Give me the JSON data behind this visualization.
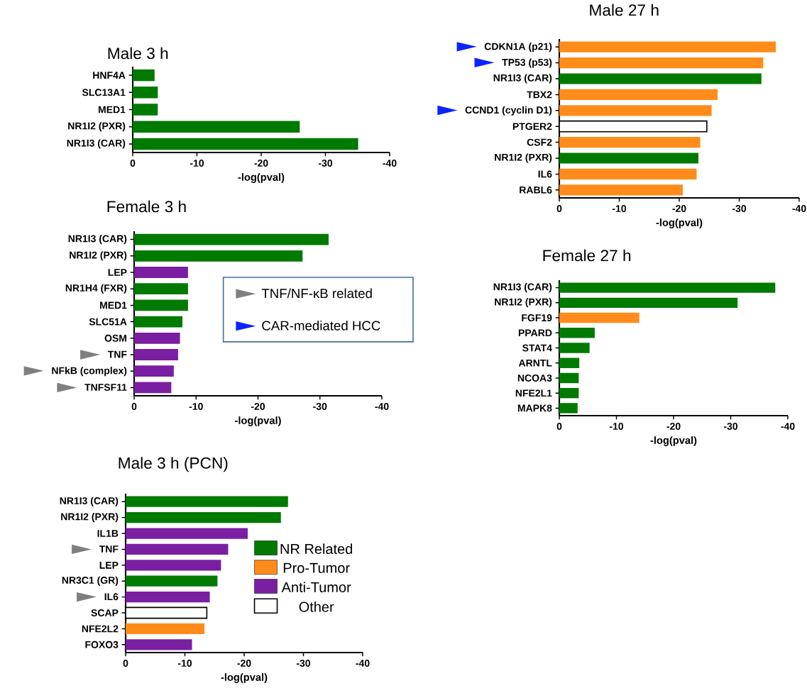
{
  "chart_data": [
    {
      "type": "bar",
      "orientation": "horizontal",
      "title": "Male 3 h",
      "xlabel": "-log(pval)",
      "xlim": [
        0,
        -40
      ],
      "xticks": [
        0,
        -10,
        -20,
        -30,
        -40
      ],
      "categories": [
        "HNF4A",
        "SLC13A1",
        "MED1",
        "NR1I2 (PXR)",
        "NR1I3 (CAR)"
      ],
      "series": [
        {
          "color": "#007a00",
          "values": [
            -3.4,
            -3.9,
            -3.9,
            -26,
            -35.1
          ]
        }
      ]
    },
    {
      "type": "bar",
      "orientation": "horizontal",
      "title": "Male 27 h",
      "xlabel": "-log(pval)",
      "xlim": [
        0,
        -40
      ],
      "xticks": [
        0,
        -10,
        -20,
        -30,
        -40
      ],
      "categories": [
        "CDKN1A (p21)",
        "TP53 (p53)",
        "NR1I3 (CAR)",
        "TBX2",
        "CCND1 (cyclin D1)",
        "PTGER2",
        "CSF2",
        "NR1I2 (PXR)",
        "IL6",
        "RABL6"
      ],
      "series": [
        {
          "color": "#007a00",
          "values": [
            null,
            null,
            -33.7,
            null,
            null,
            null,
            null,
            -23.2,
            null,
            null
          ]
        },
        {
          "color": "#ff8c1a",
          "values": [
            -36.1,
            -34,
            null,
            -26.4,
            -25.4,
            null,
            -23.5,
            null,
            -22.9,
            -20.6
          ]
        },
        {
          "color": "#ffffff",
          "values": [
            null,
            null,
            null,
            null,
            null,
            -24.6,
            null,
            null,
            null,
            null
          ]
        }
      ]
    },
    {
      "type": "bar",
      "orientation": "horizontal",
      "title": "Female 3 h",
      "xlabel": "-log(pval)",
      "xlim": [
        0,
        -40
      ],
      "xticks": [
        0,
        -10,
        -20,
        -30,
        -40
      ],
      "categories": [
        "NR1I3 (CAR)",
        "NR1I2 (PXR)",
        "LEP",
        "NR1H4 (FXR)",
        "MED1",
        "SLC51A",
        "OSM",
        "TNF",
        "NFkB (complex)",
        "TNFSF11"
      ],
      "series": [
        {
          "color": "#007a00",
          "values": [
            -31.4,
            -27.2,
            null,
            -8.7,
            -8.7,
            -7.8,
            null,
            null,
            null,
            null
          ]
        },
        {
          "color": "#7a1fa2",
          "values": [
            null,
            null,
            -8.7,
            null,
            null,
            null,
            -7.4,
            -7.1,
            -6.4,
            -6.0
          ]
        }
      ],
      "annotations": [
        "TNF/NF-κB related",
        "CAR-mediated HCC"
      ]
    },
    {
      "type": "bar",
      "orientation": "horizontal",
      "title": "Female 27 h",
      "xlabel": "-log(pval)",
      "xlim": [
        0,
        -40
      ],
      "xticks": [
        0,
        -10,
        -20,
        -30,
        -40
      ],
      "categories": [
        "NR1I3 (CAR)",
        "NR1I2 (PXR)",
        "FGF19",
        "PPARD",
        "STAT4",
        "ARNTL",
        "NCOA3",
        "NFE2L1",
        "MAPK8"
      ],
      "series": [
        {
          "color": "#007a00",
          "values": [
            -37.8,
            -31.2,
            null,
            -6.2,
            -5.3,
            -3.5,
            -3.4,
            -3.4,
            -3.2
          ]
        },
        {
          "color": "#ff8c1a",
          "values": [
            null,
            null,
            -14,
            null,
            null,
            null,
            null,
            null,
            null
          ]
        }
      ]
    },
    {
      "type": "bar",
      "orientation": "horizontal",
      "title": "Male 3 h (PCN)",
      "xlabel": "-log(pval)",
      "xlim": [
        0,
        -40
      ],
      "xticks": [
        0,
        -10,
        -20,
        -30,
        -40
      ],
      "legend": "right",
      "categories": [
        "NR1I3 (CAR)",
        "NR1I2 (PXR)",
        "IL1B",
        "TNF",
        "LEP",
        "NR3C1 (GR)",
        "IL6",
        "SCAP",
        "NFE2L2",
        "FOXO3"
      ],
      "series": [
        {
          "name": "NR Related",
          "color": "#007a00",
          "values": [
            -27.4,
            -26.2,
            null,
            null,
            null,
            -15.5,
            null,
            null,
            null,
            null
          ]
        },
        {
          "name": "Pro-Tumor",
          "color": "#ff8c1a",
          "values": [
            null,
            null,
            null,
            null,
            null,
            null,
            null,
            null,
            -13.3,
            null
          ]
        },
        {
          "name": "Anti-Tumor",
          "color": "#7a1fa2",
          "values": [
            null,
            null,
            -20.6,
            -17.3,
            -16.1,
            null,
            -14.2,
            null,
            null,
            -11.2
          ]
        },
        {
          "name": "Other",
          "color": "#ffffff",
          "values": [
            null,
            null,
            null,
            null,
            null,
            null,
            null,
            -13.7,
            null,
            null
          ]
        }
      ]
    }
  ]
}
